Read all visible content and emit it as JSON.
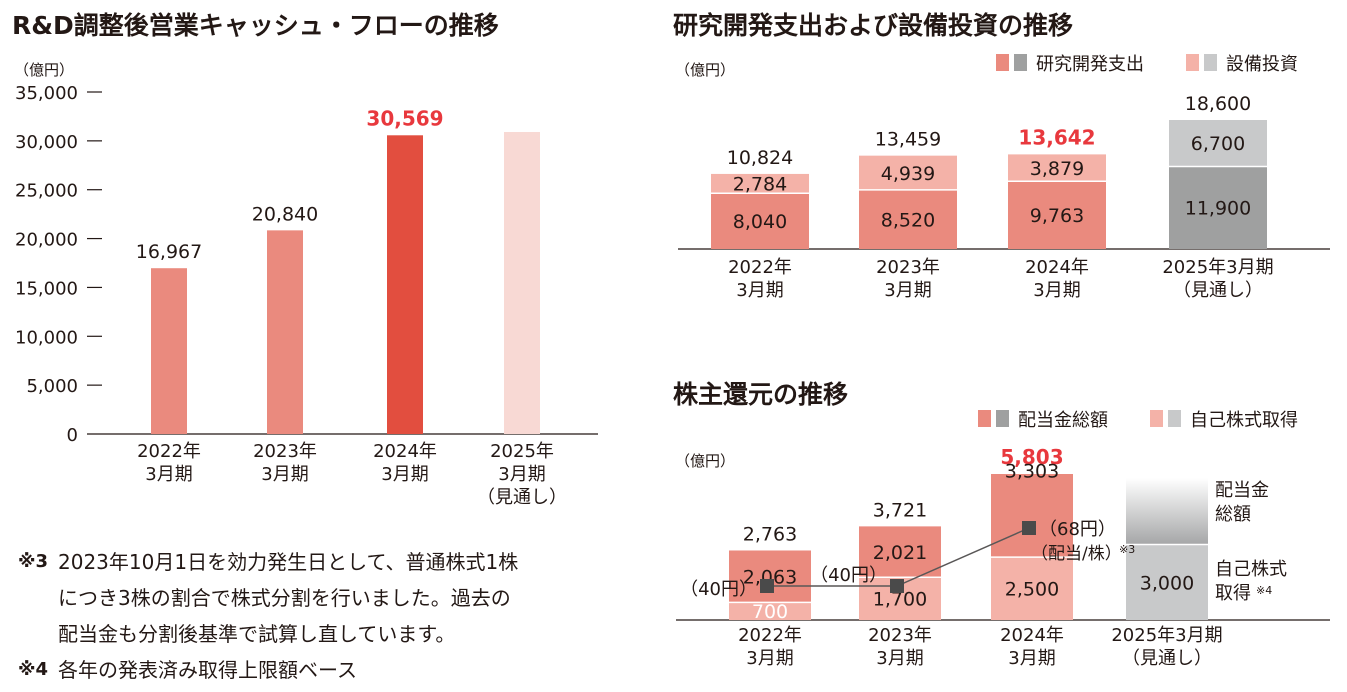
{
  "chart_data": [
    {
      "type": "bar",
      "title": "R&D調整後営業キャッシュ・フローの推移",
      "unit_label": "（億円）",
      "categories": [
        [
          "2022年",
          "3月期"
        ],
        [
          "2023年",
          "3月期"
        ],
        [
          "2024年",
          "3月期"
        ],
        [
          "2025年",
          "3月期",
          "（見通し）"
        ]
      ],
      "values": [
        16967,
        20840,
        30569,
        null
      ],
      "value_labels": [
        "16,967",
        "20,840",
        "30,569",
        ""
      ],
      "y_ticks": [
        "0",
        "5,000",
        "10,000",
        "15,000",
        "20,000",
        "25,000",
        "30,000",
        "35,000"
      ],
      "ylim": [
        0,
        35000
      ],
      "grid": false,
      "colors": [
        "#ea8a7e",
        "#ea8a7e",
        "#e24e3f",
        "#f8d9d4"
      ],
      "highlight_label_color": "#e8383d"
    },
    {
      "type": "bar",
      "stacked": true,
      "title": "研究開発支出および設備投資の推移",
      "unit_label": "（億円）",
      "legend": [
        "研究開発支出",
        "設備投資"
      ],
      "legend_colors": [
        [
          "#ea8a7e",
          "#9fa0a0"
        ],
        [
          "#f4b2a8",
          "#c8c9ca"
        ]
      ],
      "categories": [
        [
          "2022年",
          "3月期"
        ],
        [
          "2023年",
          "3月期"
        ],
        [
          "2024年",
          "3月期"
        ],
        [
          "2025年3月期",
          "（見通し）"
        ]
      ],
      "series": [
        {
          "name": "研究開発支出",
          "values": [
            8040,
            8520,
            9763,
            11900
          ],
          "labels": [
            "8,040",
            "8,520",
            "9,763",
            "11,900"
          ]
        },
        {
          "name": "設備投資",
          "values": [
            2784,
            4939,
            3879,
            6700
          ],
          "labels": [
            "2,784",
            "4,939",
            "3,879",
            "6,700"
          ]
        }
      ],
      "totals": [
        "10,824",
        "13,459",
        "13,642",
        "18,600"
      ],
      "highlight_total_index": 2,
      "ylim": [
        0,
        18600
      ],
      "colors": {
        "rd": "#ea8a7e",
        "capex": "#f4b2a8",
        "rd_forecast": "#9fa0a0",
        "capex_forecast": "#c8c9ca"
      }
    },
    {
      "type": "bar",
      "stacked": true,
      "title": "株主還元の推移",
      "unit_label": "（億円）",
      "legend": [
        "配当金総額",
        "自己株式取得"
      ],
      "categories": [
        [
          "2022年",
          "3月期"
        ],
        [
          "2023年",
          "3月期"
        ],
        [
          "2024年",
          "3月期"
        ],
        [
          "2025年3月期",
          "（見通し）"
        ]
      ],
      "series": [
        {
          "name": "自己株式取得",
          "values": [
            700,
            1700,
            2500,
            3000
          ],
          "labels": [
            "700",
            "1,700",
            "2,500",
            "3,000"
          ]
        },
        {
          "name": "配当金総額",
          "values": [
            2063,
            2021,
            3303,
            null
          ],
          "labels": [
            "2,063",
            "2,021",
            "3,303",
            ""
          ]
        }
      ],
      "totals": [
        "2,763",
        "3,721",
        "5,803",
        ""
      ],
      "highlight_total_index": 2,
      "ylim": [
        0,
        5803
      ],
      "dividend_per_share": {
        "values": [
          40,
          40,
          68
        ],
        "labels": [
          "（40円）",
          "（40円）",
          "（68円）"
        ],
        "sublabel": "（配当/株）",
        "sublabel_note": "※3"
      },
      "forecast_labels": {
        "dividend": [
          "配当金",
          "総額"
        ],
        "buyback": [
          "自己株式",
          "取得"
        ],
        "buyback_note": "※4"
      }
    }
  ],
  "notes": {
    "n3_mark": "※3",
    "n3_lines": [
      "2023年10月1日を効力発生日として、普通株式1株",
      "につき3株の割合で株式分割を行いました。過去の",
      "配当金も分割後基準で試算し直しています。"
    ],
    "n4_mark": "※4",
    "n4_text": "各年の発表済み取得上限額ベース"
  }
}
